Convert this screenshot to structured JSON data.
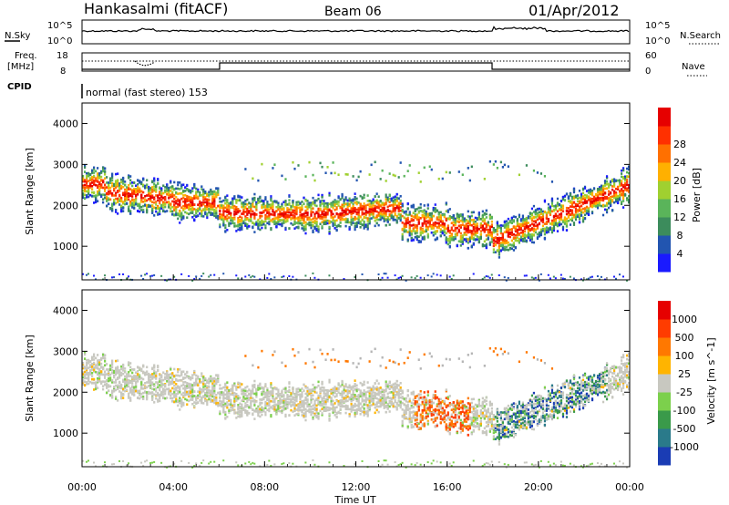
{
  "header": {
    "station": "Hankasalmi (fitACF)",
    "beam": "Beam 06",
    "date": "01/Apr/2012"
  },
  "top_panels": {
    "nsky_label": "N.Sky",
    "nsky_ticks": [
      "10^5",
      "10^0"
    ],
    "nsearch_label": "N.Search",
    "nsearch_ticks": [
      "10^5",
      "10^0"
    ],
    "freq_label": "Freq.",
    "freq_unit": "[MHz]",
    "freq_ticks": [
      "18",
      "8"
    ],
    "nave_label": "Nave",
    "nave_ticks": [
      "60",
      "0"
    ],
    "cpid_label": "CPID",
    "cpid_text": "normal (fast stereo) 153"
  },
  "chart_data": [
    {
      "type": "heatmap",
      "name": "power",
      "ylabel": "Slant Range [km]",
      "ylim": [
        180,
        4500
      ],
      "yticks": [
        "1000",
        "2000",
        "3000",
        "4000"
      ],
      "colorbar": {
        "label": "Power [dB]",
        "ticks": [
          "4",
          "8",
          "12",
          "16",
          "20",
          "24",
          "28"
        ],
        "colors": [
          "#1a1aff",
          "#2255b0",
          "#3c8c5c",
          "#5ab45a",
          "#a0d030",
          "#ffb000",
          "#ff7000",
          "#ff3000",
          "#e60000"
        ]
      }
    },
    {
      "type": "heatmap",
      "name": "velocity",
      "ylabel": "Slant Range [km]",
      "ylim": [
        180,
        4500
      ],
      "yticks": [
        "1000",
        "2000",
        "3000",
        "4000"
      ],
      "colorbar": {
        "label": "Velocity [m s^-1]",
        "ticks": [
          "1000",
          "500",
          "100",
          "25",
          "-25",
          "-100",
          "-500",
          "-1000"
        ],
        "colors": [
          "#1a3cb4",
          "#2a7a8a",
          "#3a9a4a",
          "#7cd04c",
          "#c8c8c0",
          "#ffb400",
          "#ff7800",
          "#ff3c00",
          "#e60000"
        ]
      }
    }
  ],
  "x_axis": {
    "label": "Time UT",
    "ticks": [
      "00:00",
      "04:00",
      "08:00",
      "12:00",
      "16:00",
      "20:00",
      "00:00"
    ]
  },
  "colors": {
    "axis": "#000000",
    "groundscatter": "#b4b4b4"
  }
}
